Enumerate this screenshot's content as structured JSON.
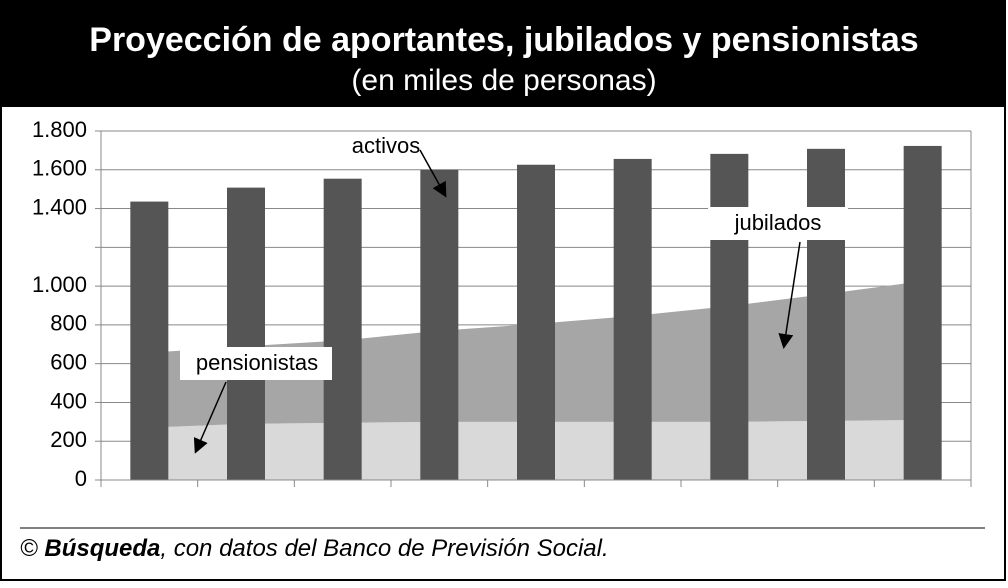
{
  "chart_data": {
    "type": "bar_area",
    "title": "Proyección de aportantes, jubilados y pensionistas",
    "subtitle": "(en miles de personas)",
    "categories": [
      null,
      null,
      null,
      null,
      null,
      null,
      null,
      null,
      null
    ],
    "series": [
      {
        "name": "activos",
        "type": "bar",
        "color": "#555555",
        "values": [
          1436,
          1508,
          1554,
          1600,
          1626,
          1656,
          1682,
          1708,
          1723
        ]
      },
      {
        "name": "pensionistas",
        "type": "area",
        "stack": true,
        "color": "#d9d9d9",
        "values": [
          270,
          290,
          295,
          300,
          300,
          300,
          300,
          305,
          310
        ]
      },
      {
        "name": "jubilados",
        "type": "area",
        "stack": true,
        "color": "#a6a6a6",
        "values": [
          386,
          400,
          425,
          470,
          505,
          546,
          597,
          654,
          716
        ]
      }
    ],
    "ylim": [
      0,
      1800
    ],
    "yticks": [
      0,
      200,
      400,
      600,
      800,
      {
        "value": 1000,
        "label": "1.000"
      },
      {
        "value": 1400,
        "label": "1.400"
      },
      {
        "value": 1600,
        "label": "1.600"
      },
      {
        "value": 1800,
        "label": "1.800"
      }
    ],
    "ygrid": [
      0,
      200,
      400,
      600,
      800,
      1000,
      1200,
      1400,
      1600,
      1800
    ],
    "source": [
      "©",
      "Búsqueda",
      ", con datos del Banco de Previsión Social."
    ]
  }
}
